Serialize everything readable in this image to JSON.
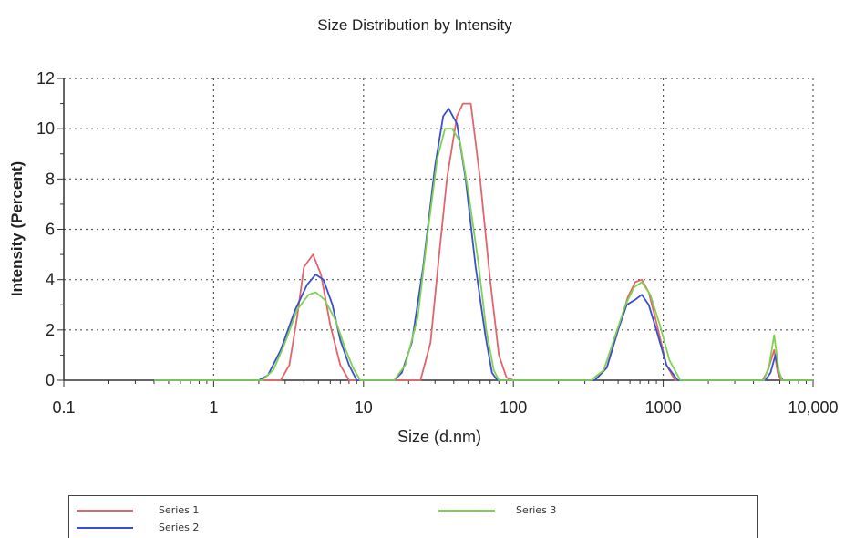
{
  "chart_data": {
    "type": "line",
    "title": "Size Distribution by Intensity",
    "xlabel": "Size (d.nm)",
    "ylabel": "Intensity (Percent)",
    "xscale": "log",
    "xlim": [
      0.1,
      10000
    ],
    "ylim": [
      0,
      12
    ],
    "x_ticks": [
      0.1,
      1,
      10,
      100,
      1000,
      10000
    ],
    "x_tick_labels": [
      "0.1",
      "1",
      "10",
      "100",
      "1000",
      "10,000"
    ],
    "y_ticks": [
      0,
      2,
      4,
      6,
      8,
      10,
      12
    ],
    "y_tick_labels": [
      "0",
      "2",
      "4",
      "6",
      "8",
      "10",
      "12"
    ],
    "grid": true,
    "legend_position": "bottom",
    "series": [
      {
        "name": "Series 1",
        "color": "#e0666a",
        "points": [
          [
            0.4,
            0
          ],
          [
            2.0,
            0
          ],
          [
            2.8,
            0
          ],
          [
            3.2,
            0.6
          ],
          [
            3.6,
            2.5
          ],
          [
            4.0,
            4.5
          ],
          [
            4.6,
            5.0
          ],
          [
            5.2,
            4.2
          ],
          [
            6.0,
            2.2
          ],
          [
            7.0,
            0.6
          ],
          [
            8.0,
            0
          ],
          [
            10,
            0
          ],
          [
            20,
            0
          ],
          [
            24,
            0
          ],
          [
            28,
            1.5
          ],
          [
            32,
            5.0
          ],
          [
            36,
            8.0
          ],
          [
            42,
            10.5
          ],
          [
            46,
            11.0
          ],
          [
            52,
            11.0
          ],
          [
            60,
            8.0
          ],
          [
            70,
            4.0
          ],
          [
            80,
            1.0
          ],
          [
            90,
            0.1
          ],
          [
            100,
            0
          ],
          [
            300,
            0
          ],
          [
            350,
            0
          ],
          [
            420,
            0.5
          ],
          [
            500,
            2.0
          ],
          [
            580,
            3.3
          ],
          [
            650,
            3.9
          ],
          [
            720,
            4.0
          ],
          [
            800,
            3.5
          ],
          [
            900,
            2.3
          ],
          [
            1050,
            0.6
          ],
          [
            1200,
            0
          ],
          [
            2000,
            0
          ],
          [
            4000,
            0
          ],
          [
            4600,
            0
          ],
          [
            5000,
            0.4
          ],
          [
            5500,
            1.2
          ],
          [
            5800,
            0.3
          ],
          [
            6100,
            0
          ],
          [
            10000,
            0
          ]
        ]
      },
      {
        "name": "Series 2",
        "color": "#3a4fd0",
        "points": [
          [
            0.4,
            0
          ],
          [
            2.0,
            0
          ],
          [
            2.3,
            0.2
          ],
          [
            2.8,
            1.2
          ],
          [
            3.5,
            2.8
          ],
          [
            4.2,
            3.8
          ],
          [
            4.8,
            4.2
          ],
          [
            5.4,
            4.0
          ],
          [
            6.2,
            3.0
          ],
          [
            7.0,
            1.6
          ],
          [
            8.0,
            0.6
          ],
          [
            9.0,
            0
          ],
          [
            10,
            0
          ],
          [
            16,
            0
          ],
          [
            18,
            0.3
          ],
          [
            21,
            1.5
          ],
          [
            25,
            4.5
          ],
          [
            30,
            8.5
          ],
          [
            34,
            10.5
          ],
          [
            37,
            10.8
          ],
          [
            42,
            10.2
          ],
          [
            48,
            8.0
          ],
          [
            56,
            4.5
          ],
          [
            65,
            1.8
          ],
          [
            72,
            0.3
          ],
          [
            78,
            0
          ],
          [
            100,
            0
          ],
          [
            350,
            0
          ],
          [
            420,
            0.5
          ],
          [
            500,
            2.0
          ],
          [
            570,
            3.0
          ],
          [
            650,
            3.2
          ],
          [
            720,
            3.4
          ],
          [
            800,
            3.0
          ],
          [
            900,
            2.0
          ],
          [
            1050,
            0.6
          ],
          [
            1250,
            0
          ],
          [
            2000,
            0
          ],
          [
            4000,
            0
          ],
          [
            4800,
            0
          ],
          [
            5200,
            0.3
          ],
          [
            5600,
            1.0
          ],
          [
            6000,
            0.2
          ],
          [
            6300,
            0
          ],
          [
            10000,
            0
          ]
        ]
      },
      {
        "name": "Series 3",
        "color": "#7fd14e",
        "points": [
          [
            0.4,
            0
          ],
          [
            2.1,
            0
          ],
          [
            2.5,
            0.4
          ],
          [
            3.0,
            1.5
          ],
          [
            3.6,
            2.8
          ],
          [
            4.3,
            3.4
          ],
          [
            4.8,
            3.5
          ],
          [
            5.5,
            3.2
          ],
          [
            6.5,
            2.4
          ],
          [
            7.5,
            1.3
          ],
          [
            8.5,
            0.5
          ],
          [
            9.5,
            0
          ],
          [
            10,
            0
          ],
          [
            16,
            0
          ],
          [
            19,
            0.6
          ],
          [
            23,
            2.5
          ],
          [
            27,
            6.0
          ],
          [
            31,
            8.8
          ],
          [
            35,
            10.0
          ],
          [
            39,
            10.0
          ],
          [
            44,
            9.5
          ],
          [
            50,
            7.5
          ],
          [
            58,
            4.8
          ],
          [
            66,
            2.0
          ],
          [
            74,
            0.4
          ],
          [
            80,
            0
          ],
          [
            100,
            0
          ],
          [
            330,
            0
          ],
          [
            400,
            0.4
          ],
          [
            480,
            1.8
          ],
          [
            560,
            3.0
          ],
          [
            640,
            3.7
          ],
          [
            720,
            3.9
          ],
          [
            820,
            3.4
          ],
          [
            950,
            2.2
          ],
          [
            1100,
            0.8
          ],
          [
            1300,
            0
          ],
          [
            2000,
            0
          ],
          [
            4000,
            0
          ],
          [
            4700,
            0
          ],
          [
            5100,
            0.6
          ],
          [
            5500,
            1.8
          ],
          [
            5900,
            0.4
          ],
          [
            6200,
            0
          ],
          [
            10000,
            0
          ]
        ]
      }
    ]
  },
  "legend": {
    "items": [
      {
        "label": "Series 1",
        "color": "#e0666a"
      },
      {
        "label": "Series 2",
        "color": "#3a4fd0"
      },
      {
        "label": "Series 3",
        "color": "#7fd14e"
      }
    ]
  }
}
